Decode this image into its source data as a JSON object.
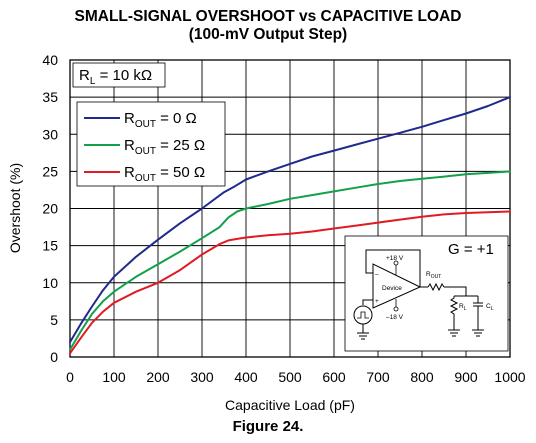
{
  "chart_data": {
    "type": "line",
    "title": "SMALL-SIGNAL OVERSHOOT vs CAPACITIVE LOAD",
    "subtitle": "(100-mV Output Step)",
    "xlabel": "Capacitive Load (pF)",
    "ylabel": "Overshoot (%)",
    "xlim": [
      0,
      1000
    ],
    "ylim": [
      0,
      40
    ],
    "xticks": [
      "0",
      "100",
      "200",
      "300",
      "400",
      "500",
      "600",
      "700",
      "800",
      "900",
      "1000"
    ],
    "yticks": [
      "0",
      "5",
      "10",
      "15",
      "20",
      "25",
      "30",
      "35",
      "40"
    ],
    "grid": true,
    "legend_position": "top-left",
    "condition_label": "RL = 10 kΩ",
    "condition": {
      "main": "R",
      "sub": "L",
      "rest": " = 10 kΩ"
    },
    "series": [
      {
        "name": "ROUT = 0 Ω",
        "name_parts": {
          "main": "R",
          "sub": "OUT",
          "rest": " = 0 Ω"
        },
        "color": "#1f2a8c",
        "x": [
          0,
          25,
          50,
          75,
          100,
          150,
          200,
          250,
          300,
          350,
          375,
          400,
          450,
          500,
          550,
          600,
          650,
          700,
          750,
          800,
          850,
          900,
          950,
          1000
        ],
        "y": [
          2,
          4.5,
          6.8,
          9,
          10.8,
          13.5,
          15.8,
          18,
          20,
          22.2,
          23,
          23.9,
          25,
          26,
          27,
          27.8,
          28.6,
          29.4,
          30.2,
          31,
          31.9,
          32.8,
          33.8,
          35
        ]
      },
      {
        "name": "ROUT = 25 Ω",
        "name_parts": {
          "main": "R",
          "sub": "OUT",
          "rest": " = 25 Ω"
        },
        "color": "#12a04a",
        "x": [
          0,
          25,
          50,
          75,
          100,
          150,
          200,
          250,
          300,
          340,
          360,
          380,
          400,
          450,
          500,
          550,
          600,
          650,
          700,
          750,
          800,
          850,
          900,
          950,
          1000
        ],
        "y": [
          1,
          3.5,
          5.8,
          7.5,
          8.8,
          10.8,
          12.5,
          14.2,
          16,
          17.5,
          18.8,
          19.6,
          20,
          20.6,
          21.3,
          21.8,
          22.3,
          22.8,
          23.3,
          23.7,
          24,
          24.3,
          24.6,
          24.8,
          25
        ]
      },
      {
        "name": "ROUT = 50 Ω",
        "name_parts": {
          "main": "R",
          "sub": "OUT",
          "rest": " = 50 Ω"
        },
        "color": "#e01b24",
        "x": [
          0,
          25,
          50,
          75,
          100,
          150,
          200,
          250,
          300,
          340,
          360,
          380,
          400,
          450,
          500,
          550,
          600,
          650,
          700,
          750,
          800,
          850,
          900,
          950,
          1000
        ],
        "y": [
          0.5,
          2.6,
          4.6,
          6.1,
          7.3,
          8.8,
          10,
          11.7,
          13.8,
          15.2,
          15.7,
          15.9,
          16.1,
          16.4,
          16.6,
          16.9,
          17.3,
          17.7,
          18.1,
          18.5,
          18.9,
          19.2,
          19.4,
          19.5,
          19.6
        ]
      }
    ]
  },
  "inset": {
    "gain_label": "G = +1",
    "device_label": "Device",
    "supply_pos": "+18 V",
    "supply_neg": "–18 V",
    "rout_label": {
      "main": "R",
      "sub": "OUT"
    },
    "rl_label": {
      "main": "R",
      "sub": "L"
    },
    "cl_label": {
      "main": "C",
      "sub": "L"
    },
    "plus_sign": "+",
    "minus_sign": "–"
  },
  "caption": "Figure 24."
}
